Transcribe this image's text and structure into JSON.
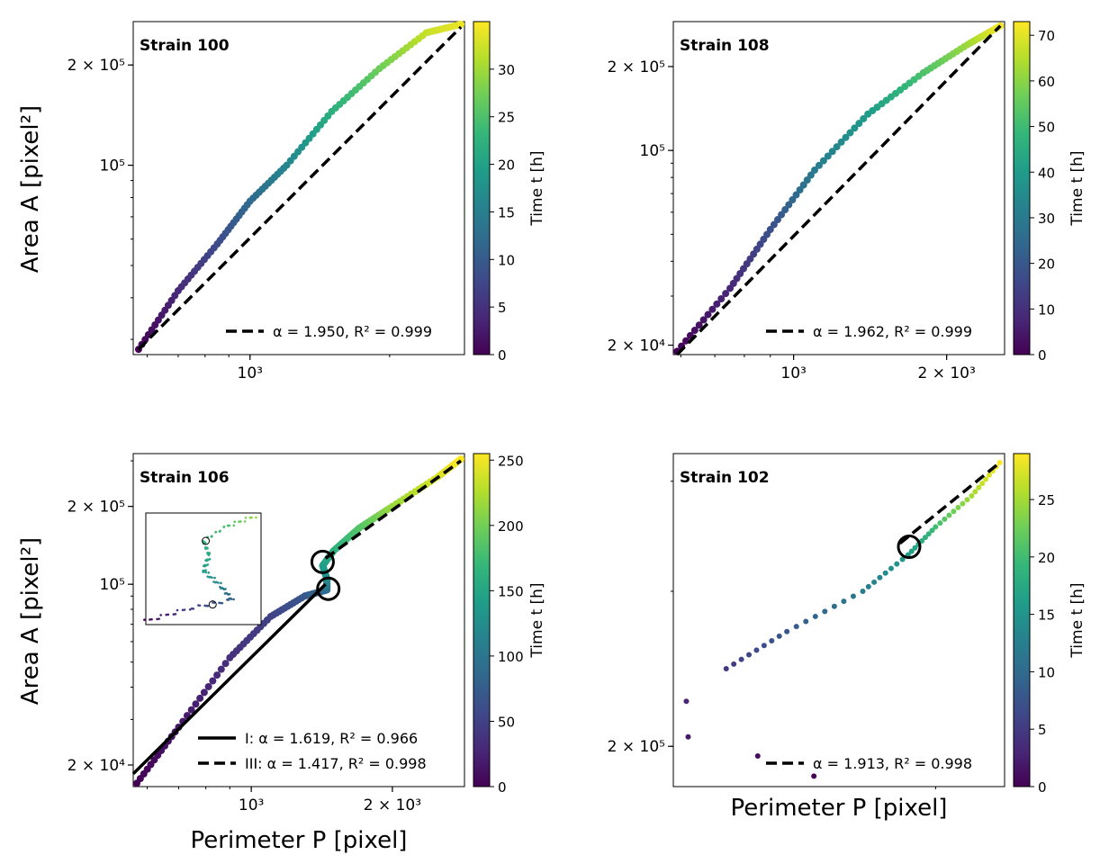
{
  "figure": {
    "ylabel": "Area A [pixel²]",
    "xlabel": "Perimeter P [pixel]",
    "colorbar_label": "Time t [h]"
  },
  "chart_data": [
    {
      "type": "scatter",
      "title": "Strain 100",
      "xlim": [
        560,
        2900
      ],
      "ylim": [
        27000,
        270000
      ],
      "xticks": [
        {
          "v": 1000,
          "label": "10³"
        }
      ],
      "yticks": [
        {
          "v": 100000,
          "label": "10⁵"
        },
        {
          "v": 200000,
          "label": "2 × 10⁵"
        }
      ],
      "ymajor_only_labels": true,
      "cbar_max": 35,
      "cbar_ticks": [
        0,
        5,
        10,
        15,
        20,
        25,
        30
      ],
      "tmax": 34,
      "points": [
        [
          575,
          28000,
          0
        ],
        [
          700,
          42000,
          4
        ],
        [
          850,
          58000,
          8
        ],
        [
          1000,
          78000,
          12
        ],
        [
          1200,
          100000,
          16
        ],
        [
          1500,
          145000,
          22
        ],
        [
          1900,
          195000,
          27
        ],
        [
          2400,
          250000,
          32
        ],
        [
          2850,
          265000,
          34
        ]
      ],
      "fits": [
        {
          "style": "dashed",
          "alpha": 1.95,
          "p0": [
            575,
            28000
          ],
          "p1": [
            2850,
            260000
          ],
          "label": "α = 1.950, R² = 0.999"
        }
      ],
      "circles": [],
      "has_inset": false
    },
    {
      "type": "scatter",
      "title": "Strain 108",
      "xlim": [
        580,
        2600
      ],
      "ylim": [
        18500,
        290000
      ],
      "xticks": [
        {
          "v": 1000,
          "label": "10³"
        },
        {
          "v": 2000,
          "label": "2 × 10³"
        }
      ],
      "yticks": [
        {
          "v": 20000,
          "label": "2 × 10⁴"
        },
        {
          "v": 100000,
          "label": "10⁵"
        },
        {
          "v": 200000,
          "label": "2 × 10⁵"
        }
      ],
      "cbar_max": 73,
      "cbar_ticks": [
        0,
        10,
        20,
        30,
        40,
        50,
        60,
        70
      ],
      "tmax": 72,
      "points": [
        [
          590,
          19000,
          0
        ],
        [
          750,
          32000,
          8
        ],
        [
          900,
          52000,
          18
        ],
        [
          1100,
          85000,
          30
        ],
        [
          1400,
          135000,
          40
        ],
        [
          1800,
          190000,
          52
        ],
        [
          2200,
          240000,
          62
        ],
        [
          2550,
          280000,
          72
        ]
      ],
      "fits": [
        {
          "style": "dashed",
          "alpha": 1.962,
          "p0": [
            590,
            18500
          ],
          "p1": [
            2550,
            280000
          ],
          "label": "α = 1.962, R² = 0.999"
        }
      ],
      "circles": [],
      "has_inset": false
    },
    {
      "type": "scatter",
      "title": "Strain 106",
      "xlim": [
        560,
        2850
      ],
      "ylim": [
        16500,
        320000
      ],
      "xticks": [
        {
          "v": 1000,
          "label": "10³"
        },
        {
          "v": 2000,
          "label": "2 × 10³"
        }
      ],
      "yticks": [
        {
          "v": 20000,
          "label": "2 × 10⁴"
        },
        {
          "v": 100000,
          "label": "10⁵"
        },
        {
          "v": 200000,
          "label": "2 × 10⁵"
        }
      ],
      "cbar_max": 255,
      "cbar_ticks": [
        0,
        50,
        100,
        150,
        200,
        250
      ],
      "tmax": 255,
      "points": [
        [
          570,
          17000,
          0
        ],
        [
          700,
          28000,
          15
        ],
        [
          900,
          52000,
          35
        ],
        [
          1100,
          75000,
          50
        ],
        [
          1300,
          90000,
          70
        ],
        [
          1450,
          95000,
          90
        ],
        [
          1450,
          105000,
          120
        ],
        [
          1420,
          118000,
          140
        ],
        [
          1500,
          135000,
          160
        ],
        [
          1700,
          165000,
          185
        ],
        [
          2000,
          200000,
          215
        ],
        [
          2500,
          260000,
          240
        ],
        [
          2800,
          305000,
          255
        ]
      ],
      "fits": [
        {
          "style": "solid",
          "alpha": 1.619,
          "p0": [
            560,
            18500
          ],
          "p1": [
            1440,
            100000
          ],
          "label": "I: α = 1.619, R² = 0.966"
        },
        {
          "style": "dashed",
          "alpha": 1.417,
          "p0": [
            1440,
            126000
          ],
          "p1": [
            2800,
            300000
          ],
          "label": "III: α = 1.417, R² = 0.998"
        }
      ],
      "circles": [
        [
          1420,
          122000
        ],
        [
          1460,
          96000
        ]
      ],
      "has_inset": true
    },
    {
      "type": "scatter",
      "title": "Strain 102",
      "xlim": [
        1000,
        2400
      ],
      "ylim": [
        180000,
        430000
      ],
      "xticks": [],
      "yticks": [
        {
          "v": 200000,
          "label": "2 × 10⁵"
        }
      ],
      "cbar_max": 29,
      "cbar_ticks": [
        0,
        5,
        10,
        15,
        20,
        25
      ],
      "tmax": 29,
      "points": [
        [
          1450,
          185000,
          0
        ],
        [
          1250,
          195000,
          1
        ],
        [
          1040,
          205000,
          2
        ],
        [
          1035,
          225000,
          3
        ],
        [
          1150,
          245000,
          5
        ],
        [
          1350,
          270000,
          8
        ],
        [
          1650,
          300000,
          12
        ],
        [
          1860,
          330000,
          16
        ],
        [
          2000,
          355000,
          20
        ],
        [
          2200,
          385000,
          25
        ],
        [
          2370,
          420000,
          29
        ]
      ],
      "fits": [
        {
          "style": "dashed",
          "alpha": 1.913,
          "p0": [
            1820,
            340000
          ],
          "p1": [
            2370,
            420000
          ],
          "label": "α = 1.913, R² = 0.998"
        }
      ],
      "circles": [
        [
          1865,
          337000
        ]
      ],
      "has_inset": false
    }
  ]
}
